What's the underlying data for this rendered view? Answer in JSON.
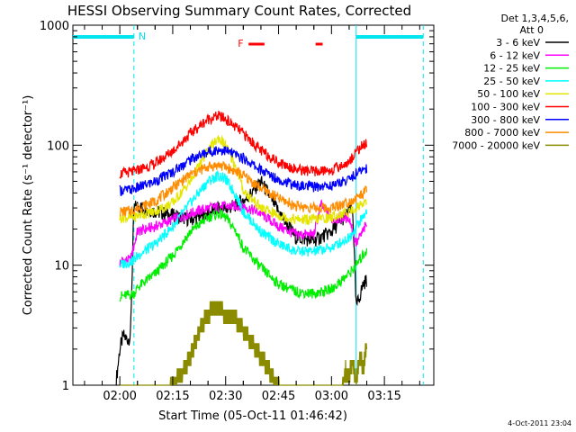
{
  "chart_data": {
    "type": "line",
    "title": "HESSI Observing Summary Count Rates, Corrected",
    "xlabel": "Start Time (05-Oct-11 01:46:42)",
    "ylabel": "Corrected Count Rate (s⁻¹ detector⁻¹)",
    "y_scale": "log",
    "ylim": [
      1,
      1000
    ],
    "xlim": [
      "01:46:42",
      "03:29:00"
    ],
    "x_ticks": [
      "02:00",
      "02:15",
      "02:30",
      "02:45",
      "03:00",
      "03:15"
    ],
    "y_ticks": [
      "1",
      "10",
      "100",
      "1000"
    ],
    "grid": false,
    "legend_position": "top-right",
    "legend_header": [
      "Det 1,3,4,5,6,",
      "Att 0"
    ],
    "footer_date": "4-Oct-2011 23:04",
    "flags": {
      "night_label": "N",
      "flare_label": "F",
      "night_intervals": [
        [
          "01:46:42",
          "02:04:00"
        ],
        [
          "03:07:00",
          "03:26:00"
        ]
      ],
      "night_lines": [
        "02:04:00",
        "03:07:00",
        "03:26:00"
      ],
      "flare_intervals": [
        [
          "02:36:30",
          "02:41:00"
        ],
        [
          "02:55:30",
          "02:57:30"
        ]
      ],
      "night_color": "#00e5ee",
      "flare_color": "#ff0000"
    },
    "series": [
      {
        "name": "3 - 6 keV",
        "color": "#000000",
        "x": [
          "01:59",
          "02:00",
          "02:01",
          "02:02",
          "02:03",
          "02:04",
          "02:05",
          "02:10",
          "02:15",
          "02:20",
          "02:25",
          "02:28",
          "02:30",
          "02:33",
          "02:36",
          "02:40",
          "02:45",
          "02:50",
          "02:55",
          "03:00",
          "03:03",
          "03:06",
          "03:07",
          "03:08",
          "03:09",
          "03:10"
        ],
        "y": [
          1.1,
          2.0,
          2.6,
          2.4,
          2.5,
          30,
          31,
          28,
          26,
          24,
          27,
          30,
          29,
          32,
          36,
          50,
          28,
          17,
          16,
          19,
          24,
          30,
          4.5,
          5.5,
          7.0,
          7.5
        ]
      },
      {
        "name": "6 - 12 keV",
        "color": "#ff00ff",
        "x": [
          "02:00",
          "02:01",
          "02:02",
          "02:03",
          "02:05",
          "02:10",
          "02:15",
          "02:20",
          "02:25",
          "02:30",
          "02:35",
          "02:40",
          "02:45",
          "02:50",
          "02:55",
          "02:57",
          "03:00",
          "03:05",
          "03:07",
          "03:10"
        ],
        "y": [
          10.5,
          11,
          11,
          11,
          19,
          21,
          24,
          27,
          30,
          31,
          31,
          27,
          21,
          18,
          18,
          32,
          24,
          25,
          15,
          22
        ]
      },
      {
        "name": "12 - 25 keV",
        "color": "#00ee00",
        "x": [
          "02:00",
          "02:02",
          "02:04",
          "02:05",
          "02:10",
          "02:15",
          "02:20",
          "02:25",
          "02:28",
          "02:30",
          "02:33",
          "02:35",
          "02:40",
          "02:45",
          "02:50",
          "02:55",
          "03:00",
          "03:05",
          "03:07",
          "03:10"
        ],
        "y": [
          5.5,
          5.6,
          5.8,
          6.5,
          8.5,
          12,
          19,
          25,
          27,
          25,
          19,
          14,
          9.5,
          7.0,
          6.0,
          5.8,
          6.3,
          8.5,
          10,
          13.5
        ]
      },
      {
        "name": "25 - 50 keV",
        "color": "#00ffff",
        "x": [
          "02:00",
          "02:02",
          "02:04",
          "02:05",
          "02:10",
          "02:15",
          "02:20",
          "02:25",
          "02:28",
          "02:30",
          "02:33",
          "02:35",
          "02:40",
          "02:45",
          "02:50",
          "02:55",
          "03:00",
          "03:05",
          "03:07",
          "03:10"
        ],
        "y": [
          10,
          10.5,
          11,
          12,
          15,
          21,
          33,
          50,
          56,
          52,
          38,
          28,
          19,
          15,
          13,
          13,
          14,
          17,
          21,
          28
        ]
      },
      {
        "name": "50 - 100 keV",
        "color": "#e5e500",
        "x": [
          "02:00",
          "02:02",
          "02:04",
          "02:05",
          "02:10",
          "02:15",
          "02:20",
          "02:25",
          "02:28",
          "02:30",
          "02:33",
          "02:35",
          "02:40",
          "02:45",
          "02:50",
          "02:55",
          "03:00",
          "03:05",
          "03:07",
          "03:10"
        ],
        "y": [
          25,
          25,
          25,
          26,
          28,
          33,
          50,
          90,
          115,
          100,
          65,
          42,
          30,
          26,
          24,
          24,
          25,
          28,
          30,
          35
        ]
      },
      {
        "name": "100 - 300 keV",
        "color": "#ff0000",
        "x": [
          "02:00",
          "02:02",
          "02:04",
          "02:05",
          "02:10",
          "02:15",
          "02:20",
          "02:25",
          "02:28",
          "02:30",
          "02:35",
          "02:40",
          "02:45",
          "02:50",
          "02:55",
          "03:00",
          "03:05",
          "03:07",
          "03:10"
        ],
        "y": [
          58,
          59,
          60,
          62,
          70,
          90,
          125,
          165,
          175,
          165,
          125,
          90,
          72,
          63,
          60,
          62,
          72,
          90,
          105
        ]
      },
      {
        "name": "300 - 800 keV",
        "color": "#0000ff",
        "x": [
          "02:00",
          "02:02",
          "02:04",
          "02:05",
          "02:10",
          "02:15",
          "02:20",
          "02:25",
          "02:28",
          "02:30",
          "02:35",
          "02:40",
          "02:45",
          "02:50",
          "02:55",
          "03:00",
          "03:05",
          "03:07",
          "03:10"
        ],
        "y": [
          42,
          42,
          43,
          44,
          50,
          60,
          76,
          88,
          92,
          90,
          78,
          62,
          52,
          46,
          45,
          46,
          52,
          58,
          65
        ]
      },
      {
        "name": "800 - 7000 keV",
        "color": "#ff8c00",
        "x": [
          "02:00",
          "02:02",
          "02:04",
          "02:05",
          "02:10",
          "02:15",
          "02:20",
          "02:25",
          "02:28",
          "02:30",
          "02:35",
          "02:40",
          "02:45",
          "02:50",
          "02:55",
          "03:00",
          "03:05",
          "03:07",
          "03:10"
        ],
        "y": [
          28,
          28,
          29,
          30,
          34,
          44,
          57,
          66,
          68,
          66,
          56,
          44,
          36,
          31,
          30,
          30,
          34,
          36,
          42
        ]
      },
      {
        "name": "7000 - 20000 keV",
        "color": "#8b8b00",
        "x": [
          "02:00",
          "02:05",
          "02:10",
          "02:14",
          "02:18",
          "02:20",
          "02:23",
          "02:25",
          "02:27",
          "02:30",
          "02:33",
          "02:36",
          "02:39",
          "02:42",
          "02:44",
          "02:46",
          "03:03",
          "03:04",
          "03:05",
          "03:06",
          "03:07",
          "03:08",
          "03:09",
          "03:10"
        ],
        "y": [
          1,
          1,
          1,
          1.05,
          1.5,
          2.0,
          3.5,
          4.5,
          5.0,
          4.5,
          4.0,
          3.0,
          2.2,
          1.6,
          1.2,
          1,
          1,
          1.5,
          1.4,
          1.8,
          1.2,
          2.0,
          1.6,
          2.5
        ]
      }
    ]
  }
}
